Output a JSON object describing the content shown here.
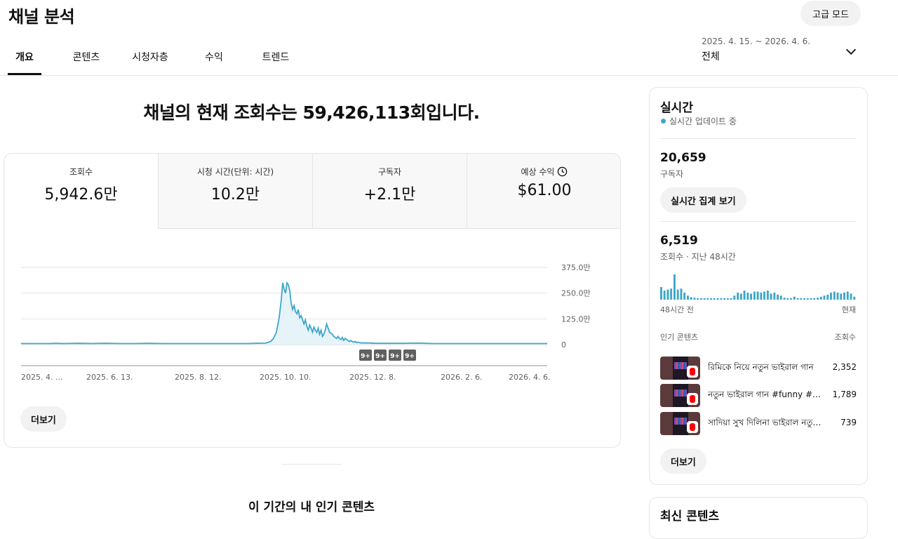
{
  "header": {
    "title": "채널 분석",
    "advanced_mode_label": "고급 모드",
    "date_range": "2025. 4. 15. ~ 2026. 4. 6.",
    "date_scope": "전체"
  },
  "tabs": [
    {
      "label": "개요",
      "active": true
    },
    {
      "label": "콘텐츠",
      "active": false
    },
    {
      "label": "시청자층",
      "active": false
    },
    {
      "label": "수익",
      "active": false
    },
    {
      "label": "트렌드",
      "active": false
    }
  ],
  "headline": "채널의 현재 조회수는 59,426,113회입니다.",
  "metrics": [
    {
      "label": "조회수",
      "value": "5,942.6만"
    },
    {
      "label": "시청 시간(단위: 시간)",
      "value": "10.2만"
    },
    {
      "label": "구독자",
      "value": "+2.1만"
    },
    {
      "label": "예상 수익",
      "value": "$61.00",
      "icon": "clock-icon"
    }
  ],
  "chart_data": {
    "type": "area",
    "x_tick_labels": [
      "2025. 4. ...",
      "2025. 6. 13.",
      "2025. 8. 12.",
      "2025. 10. 10.",
      "2025. 12. 8.",
      "2026. 2. 6.",
      "2026. 4. 6."
    ],
    "y_tick_labels": [
      "375.0만",
      "250.0만",
      "125.0만",
      "0"
    ],
    "ylim": [
      0,
      375
    ],
    "unit": "만",
    "color": "#3ea6c9",
    "markers": [
      "9+",
      "9+",
      "9+",
      "9+"
    ],
    "series": [
      {
        "points": [
          [
            0,
            5
          ],
          [
            20,
            5
          ],
          [
            40,
            5
          ],
          [
            50,
            6
          ],
          [
            60,
            5
          ],
          [
            80,
            6
          ],
          [
            100,
            5
          ],
          [
            120,
            6
          ],
          [
            140,
            5
          ],
          [
            160,
            5
          ],
          [
            180,
            6
          ],
          [
            200,
            5
          ],
          [
            220,
            5
          ],
          [
            240,
            5
          ],
          [
            260,
            5
          ],
          [
            280,
            5
          ],
          [
            300,
            5
          ],
          [
            320,
            5
          ],
          [
            330,
            6
          ],
          [
            345,
            7
          ],
          [
            352,
            15
          ],
          [
            356,
            30
          ],
          [
            360,
            60
          ],
          [
            364,
            130
          ],
          [
            367,
            220
          ],
          [
            369,
            300
          ],
          [
            371,
            270
          ],
          [
            373,
            250
          ],
          [
            375,
            300
          ],
          [
            377,
            290
          ],
          [
            379,
            260
          ],
          [
            381,
            200
          ],
          [
            383,
            170
          ],
          [
            385,
            190
          ],
          [
            387,
            160
          ],
          [
            389,
            150
          ],
          [
            391,
            170
          ],
          [
            393,
            130
          ],
          [
            395,
            140
          ],
          [
            397,
            120
          ],
          [
            399,
            100
          ],
          [
            401,
            120
          ],
          [
            403,
            90
          ],
          [
            405,
            70
          ],
          [
            407,
            95
          ],
          [
            409,
            80
          ],
          [
            411,
            60
          ],
          [
            413,
            85
          ],
          [
            415,
            70
          ],
          [
            417,
            60
          ],
          [
            419,
            80
          ],
          [
            421,
            50
          ],
          [
            423,
            70
          ],
          [
            425,
            40
          ],
          [
            427,
            50
          ],
          [
            429,
            70
          ],
          [
            431,
            100
          ],
          [
            433,
            80
          ],
          [
            435,
            60
          ],
          [
            437,
            55
          ],
          [
            439,
            50
          ],
          [
            441,
            40
          ],
          [
            443,
            35
          ],
          [
            445,
            30
          ],
          [
            447,
            40
          ],
          [
            449,
            30
          ],
          [
            451,
            25
          ],
          [
            453,
            35
          ],
          [
            455,
            20
          ],
          [
            457,
            30
          ],
          [
            459,
            25
          ],
          [
            461,
            20
          ],
          [
            463,
            15
          ],
          [
            465,
            20
          ],
          [
            467,
            15
          ],
          [
            469,
            12
          ],
          [
            471,
            15
          ],
          [
            473,
            10
          ],
          [
            475,
            12
          ],
          [
            480,
            8
          ],
          [
            490,
            8
          ],
          [
            500,
            6
          ],
          [
            520,
            6
          ],
          [
            540,
            6
          ],
          [
            560,
            7
          ],
          [
            570,
            6
          ],
          [
            580,
            5
          ],
          [
            600,
            5
          ],
          [
            620,
            5
          ],
          [
            640,
            5
          ],
          [
            660,
            5
          ],
          [
            680,
            5
          ],
          [
            700,
            5
          ],
          [
            720,
            5
          ],
          [
            742,
            5
          ]
        ]
      }
    ]
  },
  "card": {
    "more_label": "더보기"
  },
  "section_title": "이 기간의 내 인기 콘텐츠",
  "realtime": {
    "title": "실시간",
    "status": "실시간 업데이트 중",
    "subscribers_value": "20,659",
    "subscribers_label": "구독자",
    "view_realtime_label": "실시간 집계 보기",
    "views_value": "6,519",
    "views_label": "조회수 · 지난 48시간",
    "bars": [
      25,
      18,
      20,
      22,
      50,
      20,
      22,
      14,
      8,
      5,
      4,
      3,
      3,
      3,
      3,
      3,
      3,
      3,
      3,
      3,
      3,
      3,
      8,
      14,
      12,
      18,
      14,
      12,
      16,
      16,
      14,
      16,
      18,
      12,
      14,
      10,
      8,
      4,
      3,
      3,
      6,
      3,
      3,
      3,
      3,
      3,
      3,
      4,
      6,
      8,
      10,
      14,
      16,
      14,
      12,
      14,
      16,
      12,
      6
    ],
    "bars_left_label": "48시간 전",
    "bars_right_label": "현재",
    "top_header_left": "인기 콘텐츠",
    "top_header_right": "조회수",
    "top_items": [
      {
        "title": "রিমিকে নিয়ে নতুন ভাইরাল গান",
        "views": "2,352"
      },
      {
        "title": "নতুন ভাইরাল গান #funny #shorts",
        "views": "1,789"
      },
      {
        "title": "সাদিয়া সুখ দিলিনা ভাইরাল নতুন গান",
        "views": "739"
      }
    ],
    "more_label": "더보기"
  },
  "latest": {
    "title": "최신 콘텐츠"
  }
}
